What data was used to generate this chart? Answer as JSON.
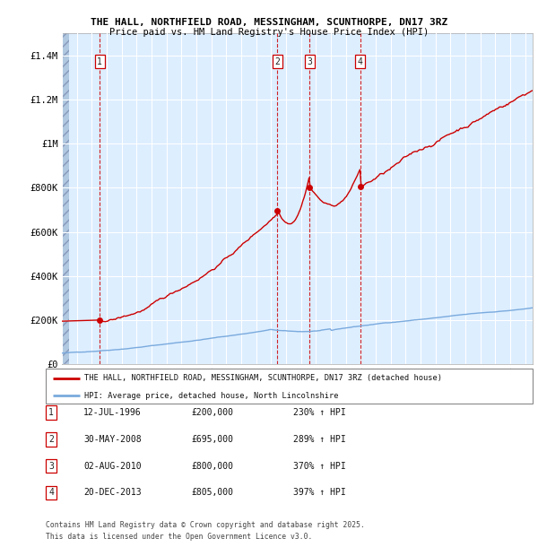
{
  "title_line1": "THE HALL, NORTHFIELD ROAD, MESSINGHAM, SCUNTHORPE, DN17 3RZ",
  "title_line2": "Price paid vs. HM Land Registry's House Price Index (HPI)",
  "xmin": 1994.0,
  "xmax": 2025.5,
  "ymin": 0,
  "ymax": 1500000,
  "yticks": [
    0,
    200000,
    400000,
    600000,
    800000,
    1000000,
    1200000,
    1400000
  ],
  "ytick_labels": [
    "£0",
    "£200K",
    "£400K",
    "£600K",
    "£800K",
    "£1M",
    "£1.2M",
    "£1.4M"
  ],
  "hpi_color": "#7aaadd",
  "price_color": "#cc0000",
  "bg_color": "#ddeeff",
  "grid_color": "#ffffff",
  "sale_events": [
    {
      "num": 1,
      "year": 1996.53,
      "price": 200000,
      "label": "12-JUL-1996",
      "price_str": "£200,000",
      "hpi_str": "230% ↑ HPI"
    },
    {
      "num": 2,
      "year": 2008.41,
      "price": 695000,
      "label": "30-MAY-2008",
      "price_str": "£695,000",
      "hpi_str": "289% ↑ HPI"
    },
    {
      "num": 3,
      "year": 2010.58,
      "price": 800000,
      "label": "02-AUG-2010",
      "price_str": "£800,000",
      "hpi_str": "370% ↑ HPI"
    },
    {
      "num": 4,
      "year": 2013.97,
      "price": 805000,
      "label": "20-DEC-2013",
      "price_str": "£805,000",
      "hpi_str": "397% ↑ HPI"
    }
  ],
  "legend_line1": "THE HALL, NORTHFIELD ROAD, MESSINGHAM, SCUNTHORPE, DN17 3RZ (detached house)",
  "legend_line2": "HPI: Average price, detached house, North Lincolnshire",
  "footer_line1": "Contains HM Land Registry data © Crown copyright and database right 2025.",
  "footer_line2": "This data is licensed under the Open Government Licence v3.0."
}
